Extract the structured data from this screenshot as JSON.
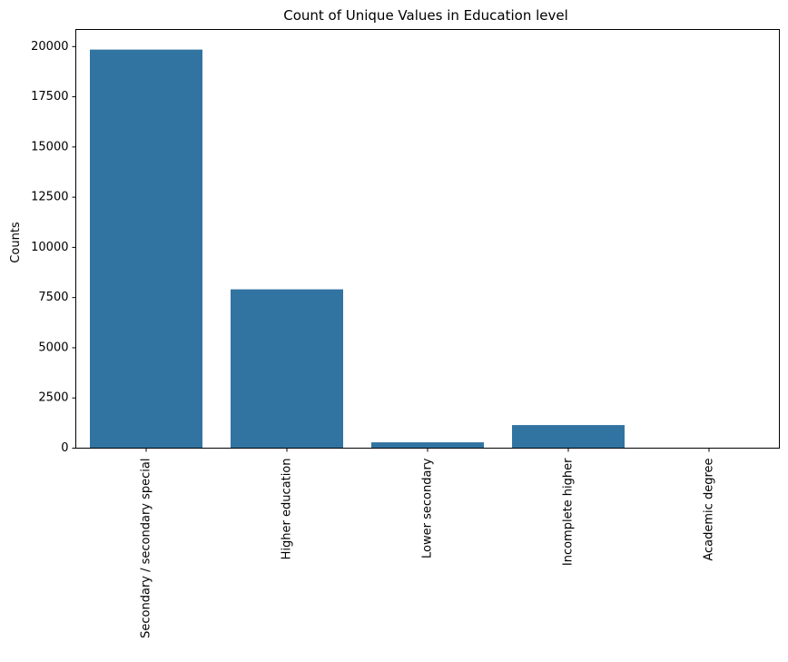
{
  "chart_data": {
    "type": "bar",
    "title": "Count of Unique Values in Education level",
    "xlabel": "",
    "ylabel": "Counts",
    "categories": [
      "Secondary / secondary special",
      "Higher education",
      "Lower secondary",
      "Incomplete higher",
      "Academic degree"
    ],
    "values": [
      19850,
      7910,
      290,
      1150,
      12
    ],
    "ylim": [
      0,
      20850
    ],
    "yticks": [
      0,
      2500,
      5000,
      7500,
      10000,
      12500,
      15000,
      17500,
      20000
    ],
    "grid": false,
    "legend": "none",
    "bar_color": "#3274a1"
  }
}
